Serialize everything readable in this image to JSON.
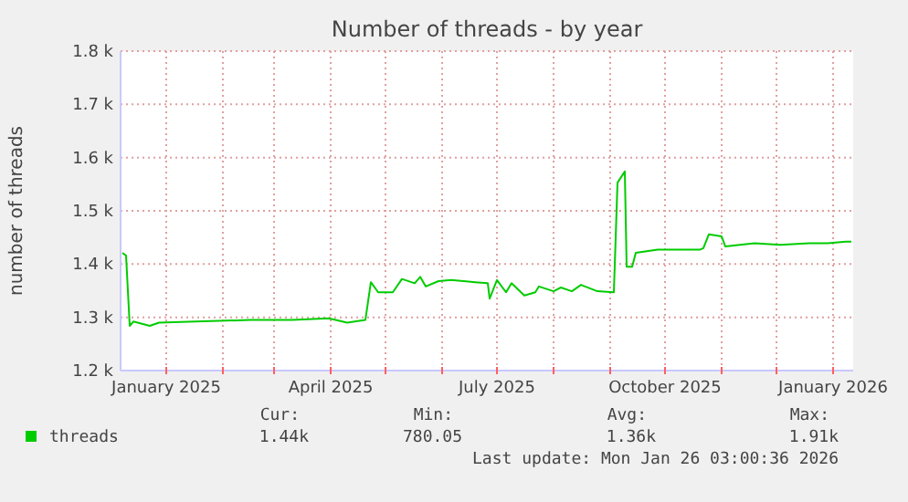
{
  "chart_data": {
    "type": "line",
    "title": "Number of threads - by year",
    "ylabel": "number of threads",
    "x": [
      "2024-12-08",
      "2024-12-10",
      "2024-12-12",
      "2024-12-14",
      "2024-12-23",
      "2024-12-28",
      "2025-01-17",
      "2025-02-16",
      "2025-03-11",
      "2025-03-31",
      "2025-04-10",
      "2025-04-20",
      "2025-04-23",
      "2025-04-27",
      "2025-05-05",
      "2025-05-10",
      "2025-05-17",
      "2025-05-20",
      "2025-05-23",
      "2025-05-30",
      "2025-06-06",
      "2025-06-19",
      "2025-06-26",
      "2025-06-27",
      "2025-07-01",
      "2025-07-06",
      "2025-07-09",
      "2025-07-16",
      "2025-07-22",
      "2025-07-24",
      "2025-08-01",
      "2025-08-05",
      "2025-08-11",
      "2025-08-16",
      "2025-08-25",
      "2025-09-03",
      "2025-09-05",
      "2025-09-09",
      "2025-09-10",
      "2025-09-13",
      "2025-09-15",
      "2025-09-27",
      "2025-10-20",
      "2025-10-22",
      "2025-10-25",
      "2025-11-01",
      "2025-11-03",
      "2025-11-19",
      "2025-12-03",
      "2025-12-19",
      "2025-12-29",
      "2026-01-08",
      "2026-01-11"
    ],
    "series": [
      {
        "name": "threads",
        "color": "#00cc00",
        "values": [
          1.421,
          1.416,
          1.284,
          1.292,
          1.284,
          1.29,
          1.292,
          1.295,
          1.295,
          1.298,
          1.29,
          1.295,
          1.366,
          1.347,
          1.347,
          1.372,
          1.364,
          1.376,
          1.358,
          1.368,
          1.37,
          1.366,
          1.364,
          1.335,
          1.37,
          1.347,
          1.364,
          1.341,
          1.347,
          1.358,
          1.349,
          1.356,
          1.349,
          1.361,
          1.349,
          1.347,
          1.553,
          1.574,
          1.395,
          1.395,
          1.421,
          1.427,
          1.427,
          1.43,
          1.456,
          1.452,
          1.433,
          1.439,
          1.436,
          1.439,
          1.439,
          1.442,
          1.442
        ]
      }
    ],
    "xlim": [
      "2024-12-07",
      "2026-01-12"
    ],
    "xticks": [
      {
        "value": "2025-01-01",
        "label": "January 2025"
      },
      {
        "value": "2025-02-01",
        "label": null
      },
      {
        "value": "2025-03-01",
        "label": null
      },
      {
        "value": "2025-04-01",
        "label": "April 2025"
      },
      {
        "value": "2025-05-01",
        "label": null
      },
      {
        "value": "2025-06-01",
        "label": null
      },
      {
        "value": "2025-07-01",
        "label": "July 2025"
      },
      {
        "value": "2025-08-01",
        "label": null
      },
      {
        "value": "2025-09-01",
        "label": null
      },
      {
        "value": "2025-10-01",
        "label": "October 2025"
      },
      {
        "value": "2025-11-01",
        "label": null
      },
      {
        "value": "2025-12-01",
        "label": null
      },
      {
        "value": "2026-01-01",
        "label": "January 2026"
      }
    ],
    "ylim": [
      1.2,
      1.8
    ],
    "yticks": [
      {
        "value": 1.2,
        "label": "1.2 k"
      },
      {
        "value": 1.3,
        "label": "1.3 k"
      },
      {
        "value": 1.4,
        "label": "1.4 k"
      },
      {
        "value": 1.5,
        "label": "1.5 k"
      },
      {
        "value": 1.6,
        "label": "1.6 k"
      },
      {
        "value": 1.7,
        "label": "1.7 k"
      },
      {
        "value": 1.8,
        "label": "1.8 k"
      }
    ],
    "grid": true,
    "legend": "bottom left",
    "annotations": [
      "Cur:",
      "Min:",
      "Avg:",
      "Max:",
      "1.44k",
      "780.05",
      "1.36k",
      "1.91k",
      "Last update: Mon Jan 26 03:00:36 2026"
    ]
  }
}
